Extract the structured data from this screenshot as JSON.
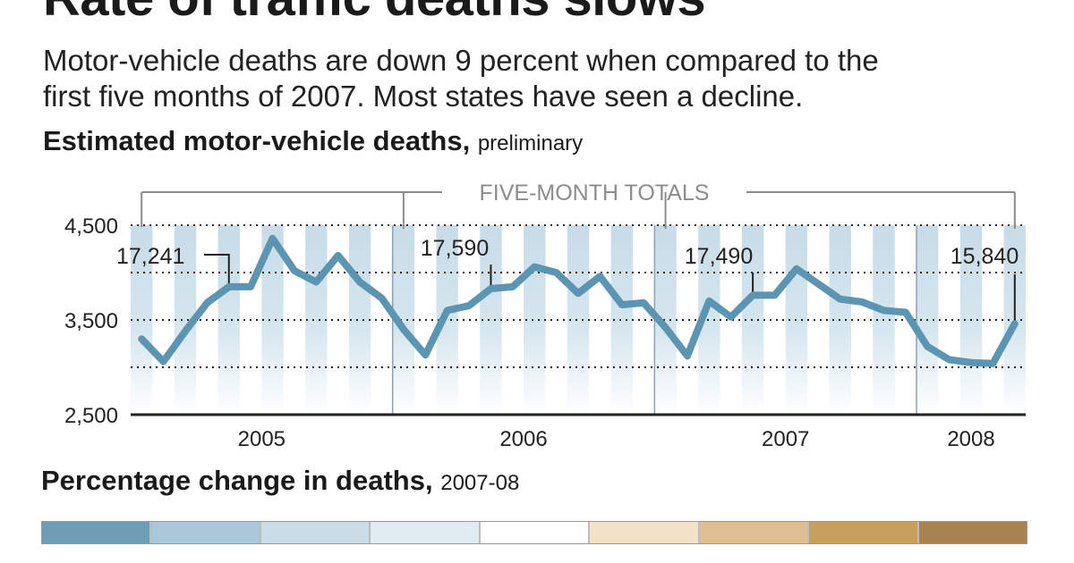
{
  "header": {
    "title": "Rate of traffic deaths slows",
    "intro_line1": "Motor-vehicle deaths are down 9 percent when compared to the",
    "intro_line2": "first five months of 2007. Most states have seen a decline."
  },
  "chart_heading": {
    "bold": "Estimated motor-vehicle deaths,",
    "sub": "preliminary"
  },
  "chart_data": {
    "type": "line",
    "title": "Estimated motor-vehicle deaths",
    "subtitle": "preliminary",
    "ylim": [
      2500,
      4500
    ],
    "y_ticks": [
      "4,500",
      "3,500",
      "2,500"
    ],
    "y_tick_values": [
      4500,
      3500,
      2500
    ],
    "grid": "dotted horizontal at 3,000, 3,500, 4,000 and 4,500",
    "x_period_start": "2005-01",
    "x_period_end": "2008-05",
    "years": [
      {
        "label": "2005",
        "months": 12
      },
      {
        "label": "2006",
        "months": 12
      },
      {
        "label": "2007",
        "months": 12
      },
      {
        "label": "2008",
        "months": 5
      }
    ],
    "series": [
      {
        "values": [
          3300,
          3060,
          3380,
          3680,
          3850,
          3850,
          4360,
          4020,
          3900,
          4180,
          3900,
          3730,
          3400,
          3130,
          3600,
          3650,
          3830,
          3850,
          4060,
          4000,
          3780,
          3960,
          3660,
          3680,
          3420,
          3120,
          3700,
          3530,
          3760,
          3760,
          4040,
          3880,
          3720,
          3690,
          3600,
          3580,
          3220,
          3080,
          3050,
          3040,
          3460
        ]
      }
    ],
    "annotations_heading": "FIVE-MONTH TOTALS",
    "annotations": [
      {
        "label": "17,241",
        "year": "2005"
      },
      {
        "label": "17,590",
        "year": "2006"
      },
      {
        "label": "17,490",
        "year": "2007"
      },
      {
        "label": "15,840",
        "year": "2008"
      }
    ],
    "colors": {
      "line": "#5b95b2",
      "stripe_top": "#c7dce8",
      "bracket": "#8c8c8c"
    }
  },
  "scale_heading": {
    "bold": "Percentage change in deaths,",
    "sub": "2007-08"
  },
  "color_scale": [
    "#6e9db4",
    "#a8c7d8",
    "#c9dde8",
    "#e1ecf2",
    "#ffffff",
    "#f2e2c8",
    "#ddbf92",
    "#c99f5e",
    "#a8834f"
  ]
}
